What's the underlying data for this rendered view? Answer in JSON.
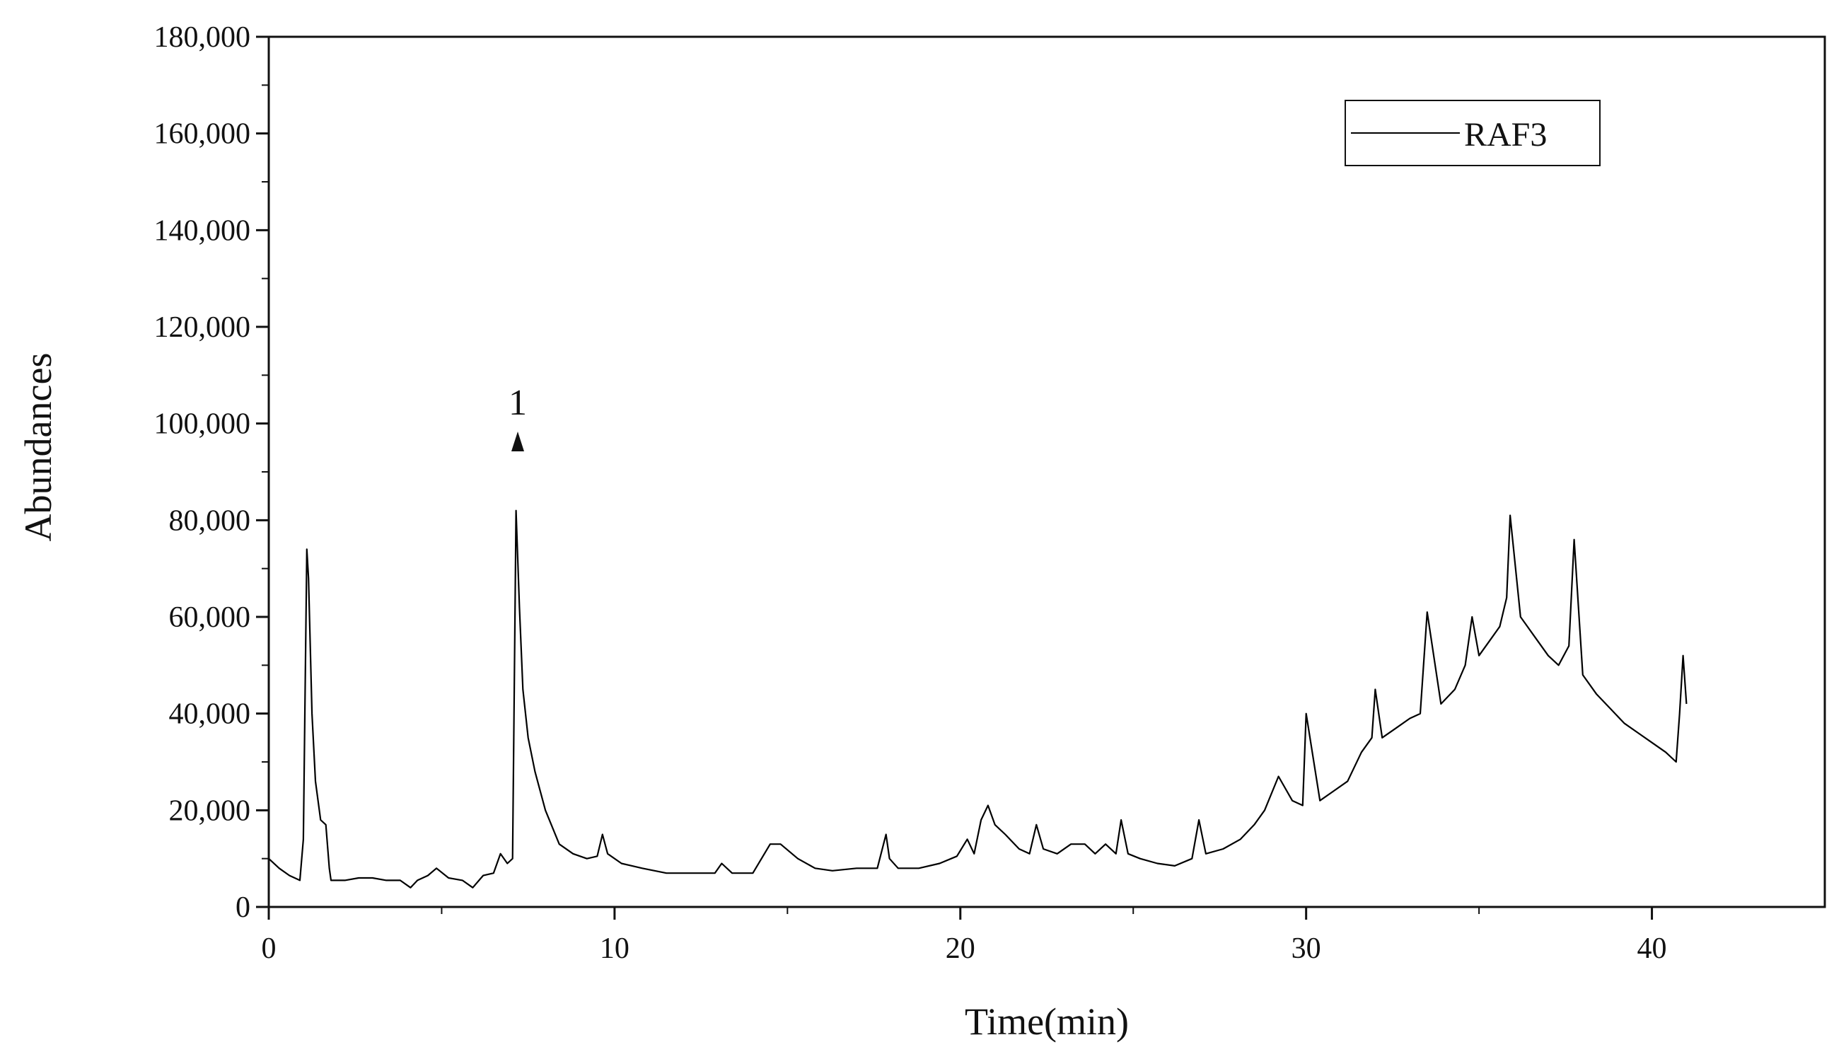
{
  "chart_data": {
    "type": "line",
    "title": "",
    "xlabel": "Time(min)",
    "ylabel": "Abundances",
    "xlim": [
      0,
      45
    ],
    "ylim": [
      0,
      180000
    ],
    "x_ticks": [
      0,
      10,
      20,
      30,
      40
    ],
    "x_tick_labels": [
      "0",
      "10",
      "20",
      "30",
      "40"
    ],
    "y_ticks": [
      0,
      20000,
      40000,
      60000,
      80000,
      100000,
      120000,
      140000,
      160000,
      180000
    ],
    "y_tick_labels": [
      "0",
      "20,000",
      "40,000",
      "60,000",
      "80,000",
      "100,000",
      "120,000",
      "140,000",
      "160,000",
      "180,000"
    ],
    "grid": false,
    "legend": {
      "position": "top-right",
      "entries": [
        "RAF3"
      ]
    },
    "annotations": [
      {
        "text": "1",
        "marker": "triangle-up",
        "x": 7.2,
        "y": 96000
      }
    ],
    "series": [
      {
        "name": "RAF3",
        "color": "#000000",
        "x": [
          0,
          0.3,
          0.6,
          0.9,
          1.0,
          1.1,
          1.15,
          1.25,
          1.35,
          1.5,
          1.65,
          1.75,
          1.8,
          1.9,
          2.2,
          2.6,
          3.0,
          3.4,
          3.8,
          4.1,
          4.3,
          4.6,
          4.85,
          5.2,
          5.6,
          5.9,
          6.2,
          6.5,
          6.7,
          6.9,
          7.05,
          7.15,
          7.25,
          7.35,
          7.5,
          7.7,
          8.0,
          8.4,
          8.8,
          9.2,
          9.5,
          9.65,
          9.8,
          10.2,
          10.8,
          11.5,
          12.3,
          12.9,
          13.1,
          13.4,
          14.0,
          14.5,
          14.8,
          15.3,
          15.8,
          16.3,
          17.0,
          17.6,
          17.85,
          17.95,
          18.2,
          18.8,
          19.4,
          19.9,
          20.2,
          20.4,
          20.6,
          20.8,
          21.0,
          21.3,
          21.7,
          22.0,
          22.2,
          22.4,
          22.8,
          23.2,
          23.6,
          23.9,
          24.2,
          24.5,
          24.65,
          24.85,
          25.2,
          25.7,
          26.2,
          26.7,
          26.9,
          27.1,
          27.6,
          28.1,
          28.5,
          28.8,
          29.2,
          29.6,
          29.9,
          30.0,
          30.4,
          30.8,
          31.2,
          31.6,
          31.9,
          32.0,
          32.2,
          32.6,
          33.0,
          33.3,
          33.5,
          33.9,
          34.3,
          34.6,
          34.8,
          35.0,
          35.3,
          35.6,
          35.8,
          35.9,
          36.2,
          36.6,
          37.0,
          37.3,
          37.6,
          37.75,
          38.0,
          38.4,
          38.8,
          39.2,
          39.6,
          40.0,
          40.4,
          40.7,
          40.8,
          40.9,
          41.0
        ],
        "y": [
          10000,
          8000,
          6500,
          5500,
          14000,
          74000,
          68000,
          40000,
          26000,
          18000,
          17000,
          8000,
          5500,
          5500,
          5500,
          6000,
          6000,
          5500,
          5500,
          4000,
          5500,
          6500,
          8000,
          6000,
          5500,
          4000,
          6500,
          7000,
          11000,
          9000,
          10000,
          82000,
          62000,
          45000,
          35000,
          28000,
          20000,
          13000,
          11000,
          10000,
          10500,
          15000,
          11000,
          9000,
          8000,
          7000,
          7000,
          7000,
          9000,
          7000,
          7000,
          13000,
          13000,
          10000,
          8000,
          7500,
          8000,
          8000,
          15000,
          10000,
          8000,
          8000,
          9000,
          10500,
          14000,
          11000,
          18000,
          21000,
          17000,
          15000,
          12000,
          11000,
          17000,
          12000,
          11000,
          13000,
          13000,
          11000,
          13000,
          11000,
          18000,
          11000,
          10000,
          9000,
          8500,
          10000,
          18000,
          11000,
          12000,
          14000,
          17000,
          20000,
          27000,
          22000,
          21000,
          40000,
          22000,
          24000,
          26000,
          32000,
          35000,
          45000,
          35000,
          37000,
          39000,
          40000,
          61000,
          42000,
          45000,
          50000,
          60000,
          52000,
          55000,
          58000,
          64000,
          81000,
          60000,
          56000,
          52000,
          50000,
          54000,
          76000,
          48000,
          44000,
          41000,
          38000,
          36000,
          34000,
          32000,
          30000,
          40000,
          52000,
          42000
        ]
      }
    ]
  }
}
